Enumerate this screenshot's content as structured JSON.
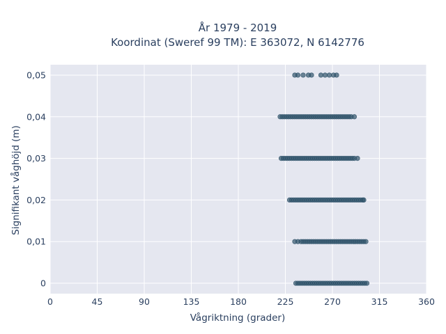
{
  "chart_data": {
    "type": "scatter",
    "title_line1": "År 1979 - 2019",
    "title_line2": "Koordinat (Sweref 99 TM): E 363072, N 6142776",
    "xlabel": "Vågriktning (grader)",
    "ylabel": "Signifikant våghöjd (m)",
    "xlim": [
      0,
      360
    ],
    "ylim": [
      -0.0025,
      0.0525
    ],
    "xticks": [
      0,
      45,
      90,
      135,
      180,
      225,
      270,
      315,
      360
    ],
    "xtick_labels": [
      "0",
      "45",
      "90",
      "135",
      "180",
      "225",
      "270",
      "315",
      "360"
    ],
    "yticks": [
      0,
      0.01,
      0.02,
      0.03,
      0.04,
      0.05
    ],
    "ytick_labels": [
      "0",
      "0,01",
      "0,02",
      "0,03",
      "0,04",
      "0,05"
    ],
    "grid": true,
    "marker_color": "#2f5269",
    "background_color": "#e5e7f0",
    "series": [
      {
        "y": 0,
        "x": [
          235,
          237,
          239,
          241,
          243,
          245,
          247,
          249,
          251,
          253,
          255,
          257,
          259,
          261,
          263,
          265,
          267,
          269,
          271,
          273,
          275,
          277,
          279,
          281,
          283,
          285,
          287,
          289,
          291,
          293,
          295,
          297,
          299,
          301,
          303
        ]
      },
      {
        "y": 0.01,
        "x": [
          234,
          237,
          240,
          242,
          244,
          246,
          248,
          250,
          252,
          254,
          256,
          258,
          260,
          262,
          264,
          266,
          268,
          270,
          272,
          274,
          276,
          278,
          280,
          282,
          284,
          286,
          288,
          290,
          292,
          294,
          296,
          298,
          300,
          302
        ]
      },
      {
        "y": 0.02,
        "x": [
          229,
          231,
          233,
          235,
          237,
          239,
          241,
          243,
          245,
          247,
          249,
          251,
          253,
          255,
          257,
          259,
          261,
          263,
          265,
          267,
          269,
          271,
          273,
          275,
          277,
          279,
          281,
          283,
          285,
          287,
          289,
          291,
          293,
          295,
          297,
          299,
          300
        ]
      },
      {
        "y": 0.03,
        "x": [
          221,
          223,
          225,
          227,
          229,
          231,
          233,
          235,
          237,
          239,
          241,
          243,
          245,
          247,
          249,
          251,
          253,
          255,
          257,
          259,
          261,
          263,
          265,
          267,
          269,
          271,
          273,
          275,
          277,
          279,
          281,
          283,
          285,
          287,
          289,
          291,
          294
        ]
      },
      {
        "y": 0.04,
        "x": [
          220,
          222,
          224,
          226,
          228,
          230,
          232,
          234,
          236,
          238,
          240,
          242,
          244,
          246,
          248,
          250,
          252,
          254,
          256,
          258,
          260,
          262,
          264,
          266,
          268,
          270,
          272,
          274,
          276,
          278,
          280,
          282,
          284,
          286,
          288,
          291
        ]
      },
      {
        "y": 0.05,
        "x": [
          234,
          237,
          242,
          247,
          250,
          259,
          263,
          267,
          271,
          274
        ]
      }
    ]
  }
}
